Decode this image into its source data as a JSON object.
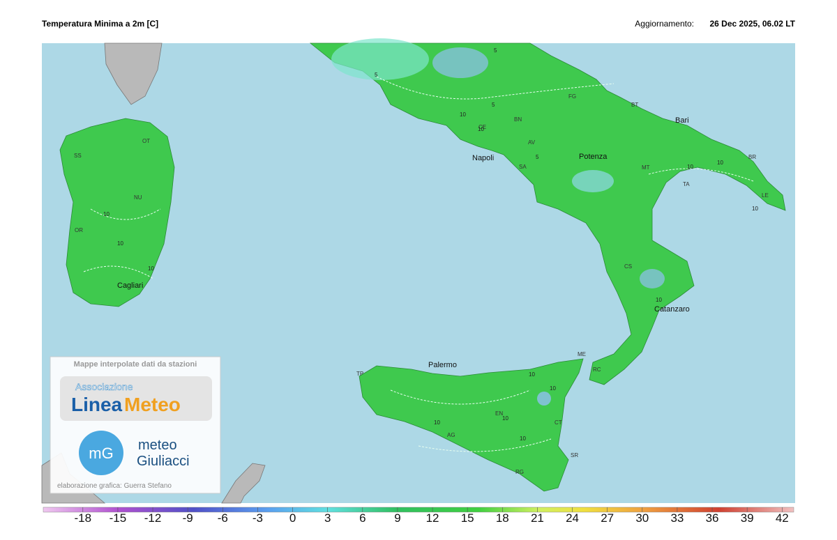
{
  "header": {
    "title": "Temperatura Minima a 2m [C]",
    "update_label": "Aggiornamento:",
    "update_time": "26 Dec 2025, 06.02 LT"
  },
  "cities": [
    "Bari",
    "Potenza",
    "Napoli",
    "Catanzaro",
    "Palermo",
    "Cagliari"
  ],
  "stations": [
    "FG",
    "BT",
    "BN",
    "AV",
    "SA",
    "MT",
    "TA",
    "BR",
    "LE",
    "CS",
    "ME",
    "RC",
    "TP",
    "EN",
    "CT",
    "AG",
    "SR",
    "RG",
    "SS",
    "OT",
    "NU",
    "OR",
    "CE"
  ],
  "contour_labels": [
    5,
    5,
    5,
    5,
    10,
    10,
    10,
    10,
    10,
    10,
    10,
    10,
    10,
    10,
    10,
    10,
    10,
    10
  ],
  "logo": {
    "caption": "Mappe interpolate dati da stazioni",
    "association": "Associazione",
    "brand_a": "Linea",
    "brand_b": "Meteo",
    "badge": "mG",
    "partner_top": "meteo",
    "partner_bottom": "Giuliacci",
    "credit": "elaborazione grafica: Guerra Stefano"
  },
  "colorbar": {
    "range": [
      -21.4,
      43
    ],
    "ticks": [
      -18,
      -15,
      -12,
      -9,
      -6,
      -3,
      0,
      3,
      6,
      9,
      12,
      15,
      18,
      21,
      24,
      27,
      30,
      33,
      36,
      39,
      42
    ]
  }
}
